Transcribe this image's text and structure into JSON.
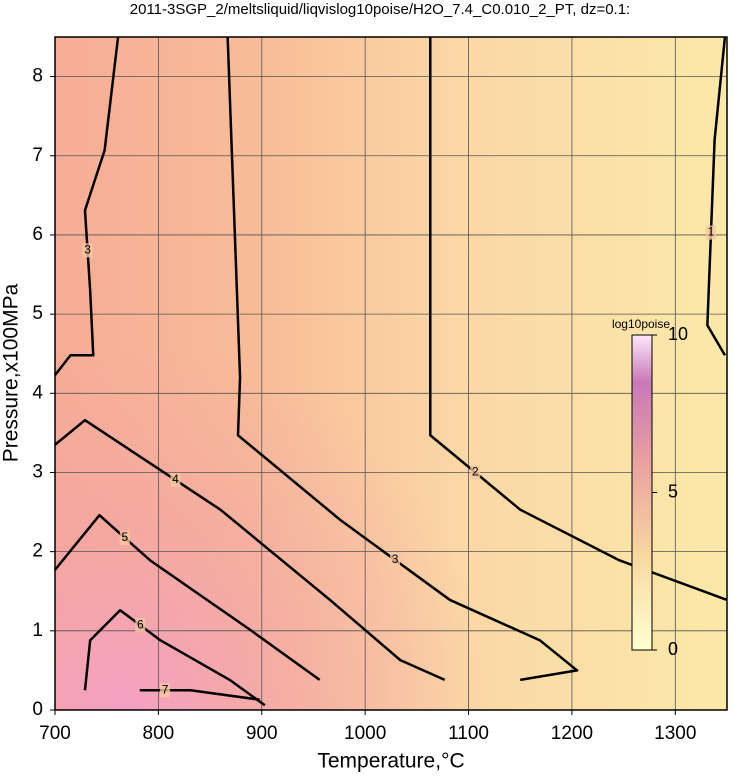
{
  "chart_data": {
    "type": "contour",
    "title": "2011-3SGP_2/meltsliquid/liqvislog10poise/H2O_7.4_C0.010_2_PT, dz=0.1:",
    "x_label": "Temperature,°C",
    "y_label": "Pressure,x100MPa",
    "xlim": [
      700,
      1350
    ],
    "ylim": [
      0,
      8.5
    ],
    "xticks": [
      700,
      800,
      900,
      1000,
      1100,
      1200,
      1300
    ],
    "yticks": [
      0,
      1,
      2,
      3,
      4,
      5,
      6,
      7,
      8
    ],
    "grid": true,
    "contours": [
      {
        "level": 1,
        "x": [
          1348,
          1338,
          1331,
          1348
        ],
        "y": [
          8.5,
          7.2,
          4.86,
          4.48
        ]
      },
      {
        "level": 2,
        "x": [
          1063,
          1063,
          1150,
          1246,
          1350
        ],
        "y": [
          8.5,
          3.47,
          2.53,
          1.89,
          1.39
        ]
      },
      {
        "level": 3,
        "x": [
          867,
          879,
          877,
          976,
          1082,
          1169,
          1205,
          1150
        ],
        "y": [
          8.5,
          4.2,
          3.47,
          2.4,
          1.39,
          0.88,
          0.5,
          0.38
        ]
      },
      {
        "level": 3,
        "x": [
          761,
          748,
          729,
          734,
          737,
          715,
          700
        ],
        "y": [
          8.5,
          7.07,
          6.31,
          5.3,
          4.48,
          4.48,
          4.23
        ]
      },
      {
        "level": 4,
        "x": [
          700,
          729,
          773,
          860,
          966,
          1034,
          1077
        ],
        "y": [
          3.35,
          3.66,
          3.28,
          2.53,
          1.39,
          0.63,
          0.38
        ]
      },
      {
        "level": 5,
        "x": [
          700,
          743,
          792,
          889,
          956
        ],
        "y": [
          1.77,
          2.46,
          1.89,
          1.01,
          0.38
        ]
      },
      {
        "level": 6,
        "x": [
          729,
          734,
          763,
          802,
          869,
          903
        ],
        "y": [
          0.25,
          0.88,
          1.26,
          0.88,
          0.38,
          0.06
        ]
      },
      {
        "level": 7,
        "x": [
          782,
          831,
          898
        ],
        "y": [
          0.25,
          0.25,
          0.13
        ]
      }
    ],
    "colorbar": {
      "label": "log10poise",
      "lim": [
        0,
        10
      ],
      "ticks": [
        0,
        5,
        10
      ]
    }
  }
}
